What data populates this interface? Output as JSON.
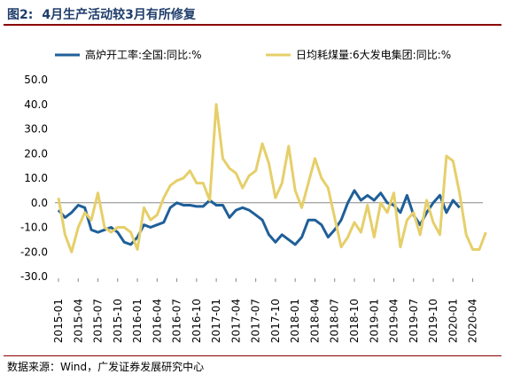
{
  "figure": {
    "number": "图2:",
    "title": "4月生产活动较3月有所修复",
    "source": "数据来源：Wind，广发证券发展研究中心"
  },
  "chart_data": {
    "type": "line",
    "ylim": [
      -30,
      50
    ],
    "yticks": [
      "50.0",
      "40.0",
      "30.0",
      "20.0",
      "10.0",
      "0.0",
      "-10.0",
      "-20.0",
      "-30.0"
    ],
    "xtick_labels": [
      "2015-01",
      "2015-04",
      "2015-07",
      "2015-10",
      "2016-01",
      "2016-04",
      "2016-07",
      "2016-10",
      "2017-01",
      "2017-04",
      "2017-07",
      "2017-10",
      "2018-01",
      "2018-04",
      "2018-07",
      "2018-10",
      "2019-01",
      "2019-04",
      "2019-07",
      "2019-10",
      "2020-01",
      "2020-04"
    ],
    "legend_position": "top",
    "grid": false,
    "series": [
      {
        "name": "高炉开工率:全国:同比:%",
        "color": "#1f5f99",
        "values": [
          -3,
          -6,
          -4,
          -1,
          -2,
          -11,
          -12,
          -11,
          -10,
          -12,
          -16,
          -17,
          -14,
          -9,
          -10,
          -9,
          -8,
          -2,
          0,
          -1,
          -1,
          -1.5,
          -1.5,
          1,
          -1,
          -1,
          -6,
          -3,
          -2,
          -3,
          -5,
          -7,
          -13,
          -16,
          -13,
          -15,
          -17,
          -14,
          -7,
          -7,
          -9,
          -14,
          -11,
          -7,
          0,
          5,
          1,
          3,
          1,
          4,
          0,
          -1,
          -4,
          3,
          -5,
          -9,
          -4,
          0,
          3,
          -4,
          1,
          -2
        ],
        "months": [
          0,
          1,
          2,
          3,
          4,
          5,
          6,
          7,
          8,
          9,
          10,
          11,
          12,
          13,
          14,
          15,
          16,
          17,
          18,
          19,
          20,
          21,
          22,
          23,
          24,
          25,
          26,
          27,
          28,
          29,
          30,
          31,
          32,
          33,
          34,
          35,
          36,
          37,
          38,
          39,
          40,
          41,
          42,
          43,
          44,
          45,
          46,
          47,
          48,
          49,
          50,
          51,
          52,
          53,
          54,
          55,
          56,
          57,
          58,
          59,
          60,
          61
        ]
      },
      {
        "name": "日均耗煤量:6大发电集团:同比:%",
        "color": "#e6cf6a",
        "values": [
          2,
          -13,
          -20,
          -10,
          -4,
          -7,
          4,
          -10,
          -12,
          -10,
          -10,
          -12,
          -19,
          -2,
          -7,
          -5,
          2,
          7,
          9,
          10,
          13,
          8,
          8,
          1,
          40,
          18,
          14,
          12,
          6,
          11,
          13,
          24,
          16,
          2,
          8,
          23,
          5,
          -2,
          8,
          18,
          10,
          6,
          -6,
          -18,
          -14,
          -8,
          -12,
          -1,
          -14,
          0,
          -4,
          4,
          -18,
          -7,
          -4,
          -13,
          1,
          -8,
          -13,
          19,
          17,
          4,
          -13,
          -19,
          -19,
          -12
        ],
        "months": [
          0,
          1,
          2,
          3,
          4,
          5,
          6,
          7,
          8,
          9,
          10,
          11,
          12,
          13,
          14,
          15,
          16,
          17,
          18,
          19,
          20,
          21,
          22,
          23,
          24,
          25,
          26,
          27,
          28,
          29,
          30,
          31,
          32,
          33,
          34,
          35,
          36,
          37,
          38,
          39,
          40,
          41,
          42,
          43,
          44,
          45,
          46,
          47,
          48,
          49,
          50,
          51,
          52,
          53,
          54,
          55,
          56,
          57,
          58,
          59,
          60,
          61,
          62,
          63,
          64,
          65
        ]
      }
    ]
  }
}
